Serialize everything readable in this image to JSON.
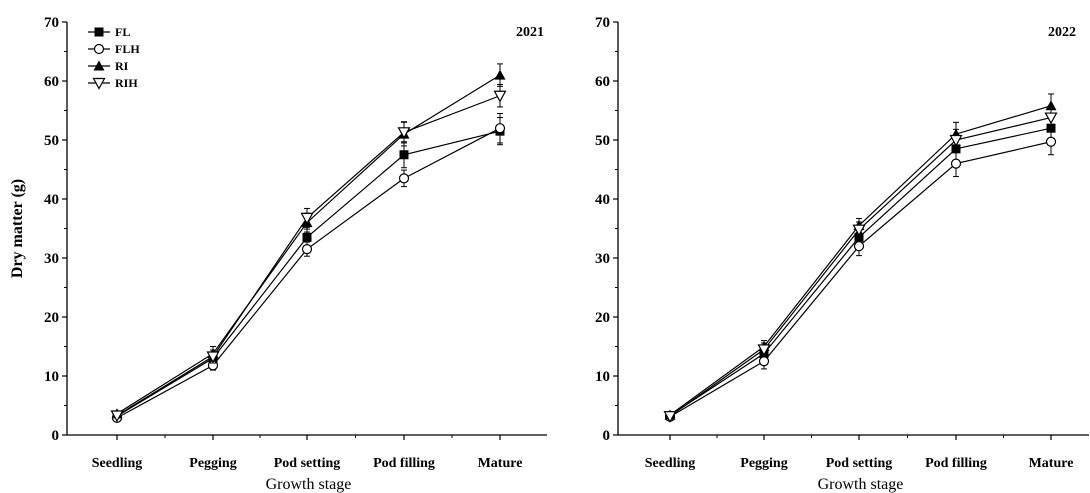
{
  "chart_data": [
    {
      "type": "line",
      "annotation": "2021",
      "xlabel": "Growth stage",
      "ylabel": "Dry matter (g)",
      "categories": [
        "Seedling",
        "Pegging",
        "Pod setting",
        "Pod filling",
        "Mature"
      ],
      "ylim": [
        0,
        70
      ],
      "yticks": [
        0,
        10,
        20,
        30,
        40,
        50,
        60,
        70
      ],
      "legend": "top-left",
      "grid": false,
      "series": [
        {
          "name": "FL",
          "marker": "filled-square",
          "values": [
            3.2,
            13.0,
            33.5,
            47.5,
            51.5
          ],
          "errors": [
            0.4,
            1.0,
            1.4,
            2.2,
            2.3
          ]
        },
        {
          "name": "FLH",
          "marker": "open-circle",
          "values": [
            2.9,
            11.8,
            31.5,
            43.5,
            52.0
          ],
          "errors": [
            0.4,
            0.8,
            1.2,
            1.4,
            2.5
          ]
        },
        {
          "name": "RI",
          "marker": "filled-triangle",
          "values": [
            3.6,
            13.8,
            36.0,
            51.0,
            61.0
          ],
          "errors": [
            0.4,
            1.2,
            1.6,
            2.0,
            1.9
          ]
        },
        {
          "name": "RIH",
          "marker": "open-triangle-down",
          "values": [
            3.3,
            13.3,
            36.8,
            51.3,
            57.5
          ],
          "errors": [
            0.4,
            1.1,
            1.6,
            1.8,
            1.9
          ]
        }
      ]
    },
    {
      "type": "line",
      "annotation": "2022",
      "xlabel": "Growth stage",
      "ylabel": "",
      "categories": [
        "Seedling",
        "Pegging",
        "Pod setting",
        "Pod filling",
        "Mature"
      ],
      "ylim": [
        0,
        70
      ],
      "yticks": [
        0,
        10,
        20,
        30,
        40,
        50,
        60,
        70
      ],
      "legend": "none",
      "grid": false,
      "series": [
        {
          "name": "FL",
          "marker": "filled-square",
          "values": [
            3.3,
            13.8,
            33.5,
            48.5,
            52.0
          ],
          "errors": [
            0.4,
            1.2,
            1.6,
            2.0,
            2.2
          ]
        },
        {
          "name": "FLH",
          "marker": "open-circle",
          "values": [
            3.1,
            12.5,
            32.0,
            46.0,
            49.7
          ],
          "errors": [
            0.4,
            1.3,
            1.6,
            2.2,
            2.2
          ]
        },
        {
          "name": "RI",
          "marker": "filled-triangle",
          "values": [
            3.4,
            15.0,
            35.5,
            51.0,
            55.8
          ],
          "errors": [
            0.4,
            1.0,
            1.2,
            2.0,
            2.0
          ]
        },
        {
          "name": "RIH",
          "marker": "open-triangle-down",
          "values": [
            3.2,
            14.5,
            34.8,
            50.0,
            53.8
          ],
          "errors": [
            0.4,
            1.1,
            1.3,
            1.8,
            2.0
          ]
        }
      ]
    }
  ]
}
